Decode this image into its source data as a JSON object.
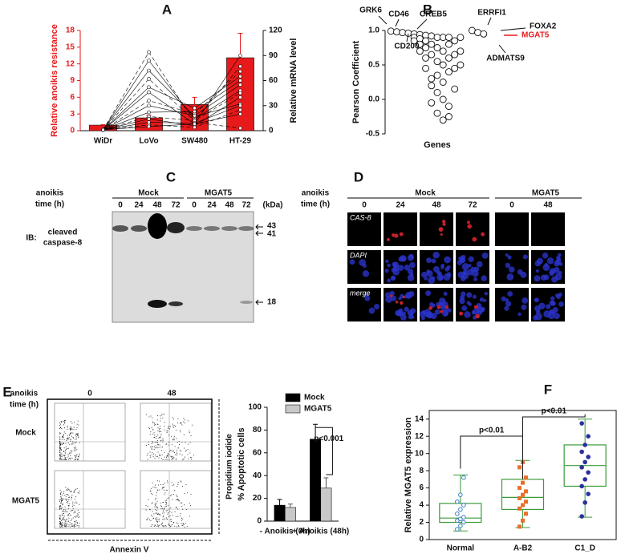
{
  "panel_labels": [
    "A",
    "B",
    "C",
    "D",
    "E",
    "F"
  ],
  "chart_data": [
    {
      "type": "bar",
      "categories": [
        "WiDr",
        "LoVo",
        "SW480",
        "HT-29"
      ],
      "ylabel": "Relative anoikis resistance",
      "y2label": "Relative mRNA level",
      "ylim": [
        0,
        18
      ],
      "yticks": [
        0,
        3,
        6,
        9,
        12,
        15,
        18
      ],
      "y2lim": [
        0,
        120
      ],
      "y2ticks": [
        0,
        30,
        60,
        90,
        120
      ],
      "series": [
        {
          "color": "#e8191a",
          "values": [
            1,
            2.3,
            4.7,
            13.1
          ],
          "errors": [
            0.1,
            0.5,
            1.3,
            4.4
          ]
        },
        {
          "axis": "y2",
          "color": "#000000",
          "values": [
            1,
            94,
            10,
            3
          ]
        },
        {
          "axis": "y2",
          "color": "#000000",
          "values": [
            1,
            84,
            14,
            48
          ]
        },
        {
          "axis": "y2",
          "color": "#000000",
          "values": [
            1,
            72,
            17,
            32
          ]
        },
        {
          "axis": "y2",
          "color": "#000000",
          "values": [
            1,
            62,
            12,
            77
          ]
        },
        {
          "axis": "y2",
          "color": "#000000",
          "values": [
            1,
            52,
            27,
            65
          ]
        },
        {
          "axis": "y2",
          "color": "#000000",
          "values": [
            1,
            46,
            8,
            90
          ]
        },
        {
          "axis": "y2",
          "color": "#000000",
          "values": [
            1,
            36,
            20,
            71
          ]
        },
        {
          "axis": "y2",
          "color": "#000000",
          "values": [
            1,
            30,
            18,
            55
          ]
        },
        {
          "axis": "y2",
          "color": "#000000",
          "values": [
            1,
            22,
            23,
            60
          ]
        },
        {
          "axis": "y2",
          "color": "#000000",
          "values": [
            1,
            17,
            12,
            45
          ]
        },
        {
          "axis": "y2",
          "color": "#000000",
          "values": [
            1,
            14,
            6,
            40
          ]
        },
        {
          "axis": "y2",
          "color": "#000000",
          "values": [
            1,
            10,
            9,
            30
          ]
        },
        {
          "axis": "y2",
          "color": "#000000",
          "values": [
            1,
            7,
            4,
            25
          ]
        },
        {
          "axis": "y2",
          "color": "#000000",
          "values": [
            1,
            5,
            8,
            20
          ]
        }
      ]
    },
    {
      "type": "scatter",
      "ylabel": "Pearson Coefficient",
      "xlabel": "Genes",
      "xlim": [
        0,
        18
      ],
      "ylim": [
        -0.5,
        1.0
      ],
      "yticks": [
        {
          "value": -0.5,
          "label": "-0.5"
        },
        {
          "value": 0,
          "label": "0.0"
        },
        {
          "value": 0.5,
          "label": "0.5"
        },
        {
          "value": 1,
          "label": "1.0"
        }
      ],
      "x": [
        1,
        2,
        3,
        4,
        5,
        5,
        5,
        6,
        6,
        6,
        6,
        7,
        7,
        7,
        7,
        7,
        8,
        8,
        8,
        8,
        8,
        8,
        9,
        9,
        9,
        9,
        9,
        9,
        10,
        10,
        10,
        10,
        10,
        10,
        11,
        11,
        11,
        11,
        11,
        11,
        12,
        12,
        12,
        12,
        13,
        13,
        13,
        15,
        16,
        17
      ],
      "values": [
        0.99,
        0.98,
        0.97,
        0.96,
        0.95,
        0.9,
        0.85,
        0.94,
        0.88,
        0.8,
        0.7,
        0.93,
        0.85,
        0.75,
        0.6,
        0.45,
        0.92,
        0.8,
        0.65,
        0.3,
        0.2,
        -0.05,
        0.9,
        0.75,
        0.55,
        0.35,
        0.1,
        -0.2,
        0.9,
        0.7,
        0.5,
        0.25,
        0.0,
        -0.3,
        0.9,
        0.8,
        0.6,
        0.4,
        -0.1,
        -0.25,
        0.85,
        0.65,
        0.45,
        0.15,
        0.9,
        0.7,
        0.5,
        1.0,
        0.97,
        0.95
      ],
      "highlight_color": "#e8191a",
      "annotations": [
        "GRK6",
        "CD46",
        "CREB5",
        "CD200",
        "ERRFI1",
        "FOXA2",
        "MGAT5",
        "ADMATS9"
      ]
    },
    {
      "type": "bar",
      "categories": [
        "- Anoikis (0h)",
        "+ Anoikis (48h)"
      ],
      "ylabel": "% Apoptotic cells",
      "ylim": [
        0,
        100
      ],
      "yticks": [
        0,
        20,
        40,
        60,
        80,
        100
      ],
      "series": [
        {
          "name": "Mock",
          "color": "#000000",
          "values": [
            14,
            72
          ],
          "errors": [
            5,
            13
          ]
        },
        {
          "name": "MGAT5",
          "color": "#c8c8c8",
          "values": [
            12,
            29
          ],
          "errors": [
            3,
            9
          ]
        }
      ],
      "annotations": [
        "p<0.001"
      ]
    },
    {
      "type": "box",
      "categories": [
        "Normal",
        "A-B2",
        "C1_D"
      ],
      "ylabel": "Relative MGAT5 expression",
      "ylim": [
        0,
        15
      ],
      "yticks": [
        0,
        2,
        4,
        6,
        8,
        10,
        12,
        14
      ],
      "color": "#3a9a3a",
      "min": [
        1,
        1.4,
        2.6
      ],
      "q1": [
        2,
        3.5,
        6.2
      ],
      "median": [
        2.5,
        4.9,
        8.6
      ],
      "q3": [
        4.2,
        7,
        11
      ],
      "max": [
        7.5,
        9.2,
        14
      ],
      "points": [
        [
          1.2,
          1.6,
          2,
          2.2,
          2.4,
          2.6,
          3,
          3.5,
          4,
          4.4,
          5.2,
          7.2
        ],
        [
          1.5,
          2.2,
          3,
          3.6,
          4,
          4.4,
          4.8,
          5.2,
          5.6,
          6,
          6.6,
          7.2,
          8.4,
          9
        ],
        [
          2.7,
          4.3,
          5.3,
          6.2,
          7,
          7.8,
          8.4,
          9,
          9.6,
          10.2,
          11,
          12,
          13.5
        ]
      ],
      "point_colors": [
        "#3b7fc4",
        "#e8702a",
        "#2b2f9a"
      ],
      "annotations": [
        "p<0.01",
        "p<0.01"
      ]
    }
  ],
  "blot": {
    "label_line1": "anoikis",
    "label_line2": "time (h)",
    "groups": [
      "Mock",
      "MGAT5"
    ],
    "times": [
      0,
      24,
      48,
      72,
      0,
      24,
      48,
      72
    ],
    "unit": "(kDa)",
    "probe_prefix": "IB:",
    "probe_line1": "cleaved",
    "probe_line2": "caspase-8",
    "markers": [
      43,
      41,
      18
    ]
  },
  "immunofluorescence": {
    "label_line1": "anoikis",
    "label_line2": "time (h)",
    "groups": [
      "Mock",
      "MGAT5"
    ],
    "times": [
      0,
      24,
      48,
      72,
      0,
      48
    ],
    "rows": [
      "CAS-8",
      "DAPI",
      "merge"
    ]
  },
  "flow_cytometry": {
    "label_line1": "anoikis",
    "label_line2": "time (h)",
    "times": [
      0,
      48
    ],
    "rows": [
      "Mock",
      "MGAT5"
    ],
    "y_axis": "Propidium iodide",
    "x_axis": "Annexin V"
  }
}
